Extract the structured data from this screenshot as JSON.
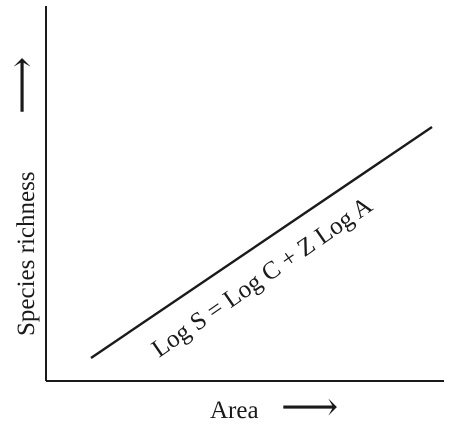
{
  "chart_data": {
    "type": "line",
    "title": "",
    "xlabel": "Area",
    "ylabel": "Species richness",
    "x_arrow": "⟶",
    "y_arrow": "⟶",
    "grid": false,
    "legend": "none",
    "series": [
      {
        "values": [
          {
            "x": 0.0,
            "y": 0.0
          },
          {
            "x": 1.0,
            "y": 1.0
          }
        ],
        "annotation": "Log S = Log C + Z Log A"
      }
    ]
  },
  "colors": {
    "ink": "#1a1a1a",
    "background": "#ffffff"
  }
}
